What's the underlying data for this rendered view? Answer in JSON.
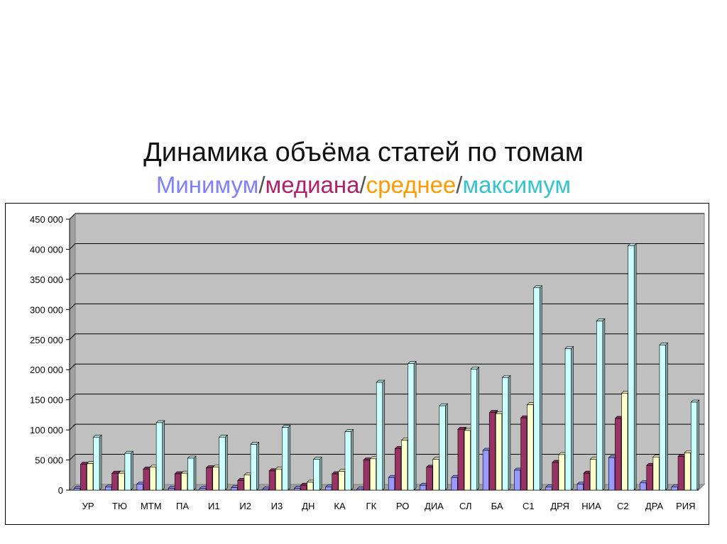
{
  "title": "Динамика объёма статей по томам",
  "subtitle_parts": [
    {
      "text": "Минимум",
      "color": "#8080ff"
    },
    {
      "text": "/",
      "color": "#555555"
    },
    {
      "text": "медиана",
      "color": "#b0206b"
    },
    {
      "text": "/",
      "color": "#555555"
    },
    {
      "text": "среднее",
      "color": "#ff9900"
    },
    {
      "text": "/",
      "color": "#555555"
    },
    {
      "text": "максимум",
      "color": "#33c4cc"
    }
  ],
  "chart_data": {
    "type": "bar",
    "categories": [
      "УР",
      "ТЮ",
      "МТМ",
      "ПА",
      "И1",
      "И2",
      "И3",
      "ДН",
      "КА",
      "ГК",
      "РО",
      "ДИА",
      "СЛ",
      "БА",
      "С1",
      "ДРЯ",
      "НИА",
      "С2",
      "ДРА",
      "РИЯ"
    ],
    "series": [
      {
        "name": "Минимум",
        "color": "#9999ff",
        "values": [
          3000,
          5000,
          10000,
          3000,
          3000,
          4000,
          2000,
          3000,
          5000,
          2000,
          21000,
          8000,
          21000,
          66000,
          33000,
          5000,
          10000,
          54000,
          12000,
          5000
        ]
      },
      {
        "name": "медиана",
        "color": "#993366",
        "values": [
          43000,
          28000,
          35000,
          27000,
          37000,
          16000,
          32000,
          8000,
          27000,
          50000,
          69000,
          38000,
          101000,
          129000,
          120000,
          46000,
          28000,
          119000,
          41000,
          56000
        ]
      },
      {
        "name": "среднее",
        "color": "#ffffcc",
        "values": [
          44000,
          28000,
          38000,
          28000,
          38000,
          25000,
          35000,
          13000,
          31000,
          52000,
          83000,
          51000,
          99000,
          127000,
          142000,
          59000,
          51000,
          161000,
          55000,
          62000
        ]
      },
      {
        "name": "максимум",
        "color": "#ccffff",
        "values": [
          88000,
          61000,
          112000,
          53000,
          88000,
          76000,
          104000,
          51000,
          97000,
          179000,
          210000,
          140000,
          201000,
          187000,
          336000,
          235000,
          281000,
          406000,
          241000,
          146000
        ]
      }
    ],
    "ylim": [
      0,
      450000
    ],
    "yticks": [
      "0",
      "50 000",
      "100 000",
      "150 000",
      "200 000",
      "250 000",
      "300 000",
      "350 000",
      "400 000",
      "450 000"
    ],
    "grid": true,
    "plot_background": "#c0c0c0"
  }
}
